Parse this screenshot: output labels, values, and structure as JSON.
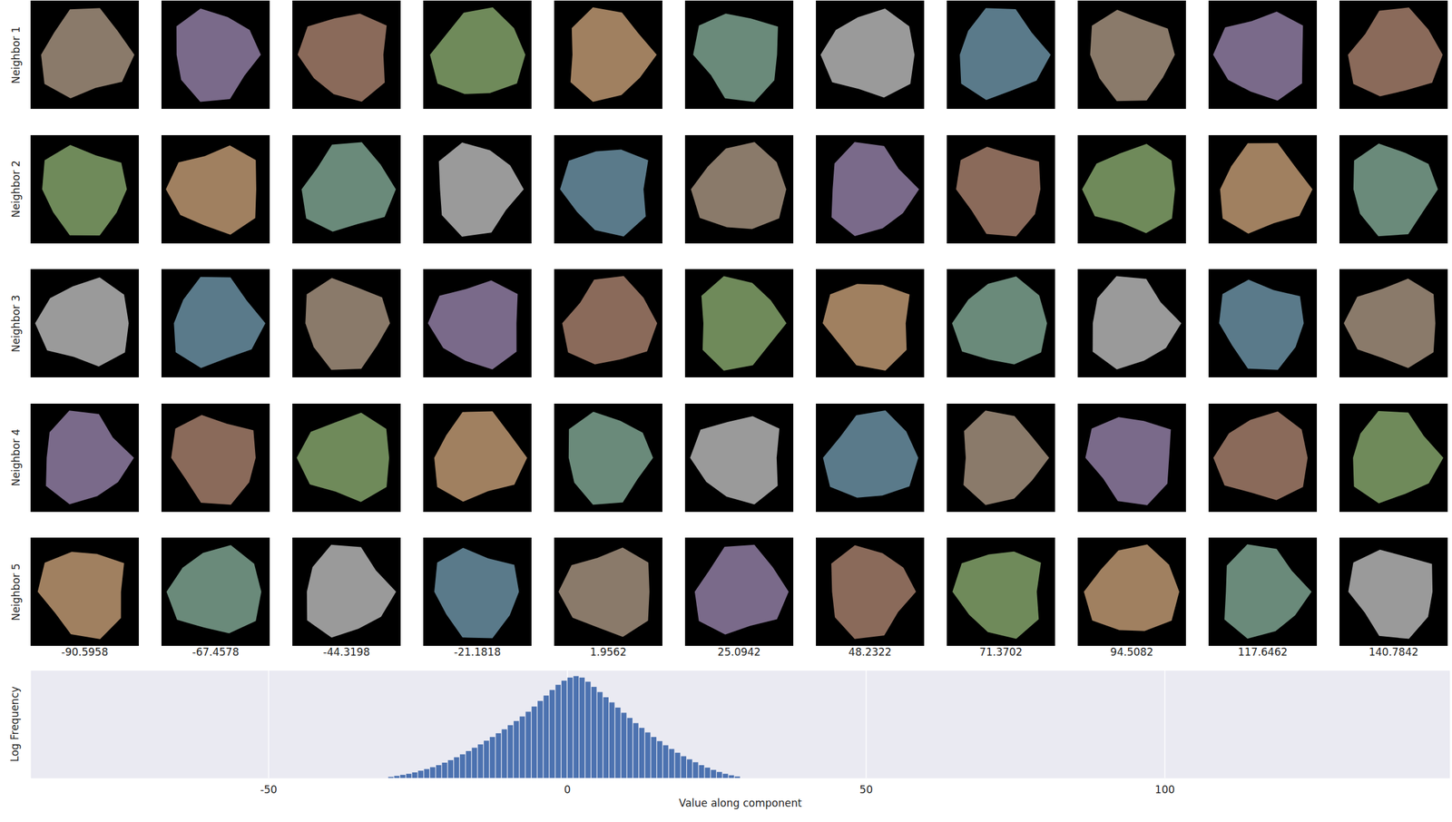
{
  "image_grid": {
    "row_labels": [
      "Neighbor 1",
      "Neighbor 2",
      "Neighbor 3",
      "Neighbor 4",
      "Neighbor 5"
    ],
    "column_values": [
      -90.5958,
      -67.4578,
      -44.3198,
      -21.1818,
      1.9562,
      25.0942,
      48.2322,
      71.3702,
      94.5082,
      117.6462,
      140.7842
    ]
  },
  "chart_data": {
    "type": "histogram",
    "x_label": "Value along component",
    "y_label": "Log Frequency",
    "bins": [
      -30,
      -29,
      -28,
      -27,
      -26,
      -25,
      -24,
      -23,
      -22,
      -21,
      -20,
      -19,
      -18,
      -17,
      -16,
      -15,
      -14,
      -13,
      -12,
      -11,
      -10,
      -9,
      -8,
      -7,
      -6,
      -5,
      -4,
      -3,
      -2,
      -1,
      0,
      1,
      2,
      3,
      4,
      5,
      6,
      7,
      8,
      9,
      10,
      11,
      12,
      13,
      14,
      15,
      16,
      17,
      18,
      19,
      20,
      21,
      22,
      23,
      24,
      25,
      26,
      27,
      28,
      29
    ],
    "values": [
      0.05,
      0.1,
      0.15,
      0.2,
      0.27,
      0.35,
      0.43,
      0.52,
      0.62,
      0.74,
      0.86,
      1.0,
      1.14,
      1.3,
      1.46,
      1.62,
      1.8,
      1.98,
      2.16,
      2.35,
      2.55,
      2.75,
      2.97,
      3.2,
      3.45,
      3.72,
      3.98,
      4.25,
      4.5,
      4.7,
      4.85,
      4.92,
      4.85,
      4.65,
      4.4,
      4.15,
      3.9,
      3.65,
      3.4,
      3.15,
      2.9,
      2.65,
      2.42,
      2.2,
      1.98,
      1.78,
      1.58,
      1.4,
      1.22,
      1.05,
      0.9,
      0.76,
      0.62,
      0.5,
      0.39,
      0.29,
      0.2,
      0.13,
      0.07
    ],
    "color": "#4c72b0",
    "xlim": [
      -89.8,
      147.7
    ],
    "xticks": [
      -50,
      0,
      50,
      100
    ],
    "ylim": [
      0,
      5.2
    ],
    "grid": true,
    "tick_labels": "x"
  }
}
